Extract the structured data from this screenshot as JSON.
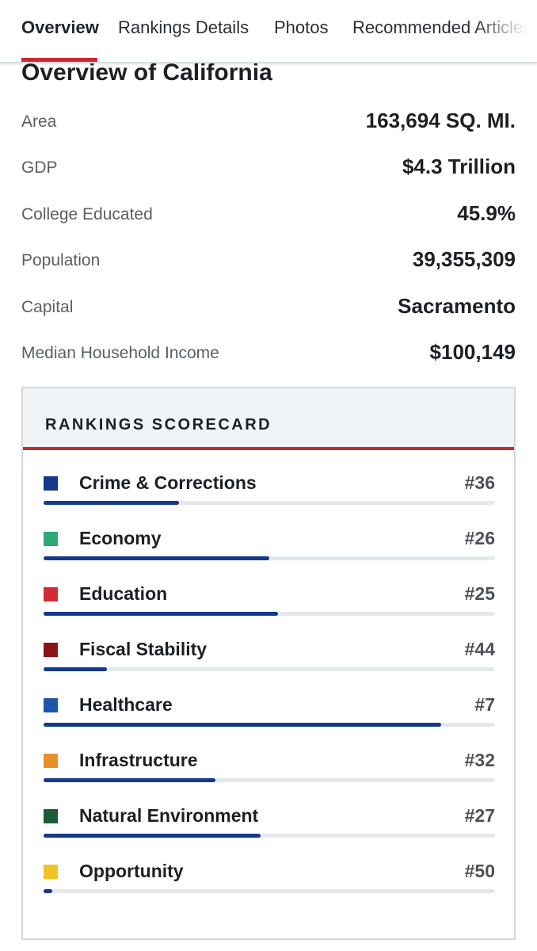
{
  "tabs": [
    {
      "label": "Overview",
      "active": true
    },
    {
      "label": "Rankings Details",
      "active": false
    },
    {
      "label": "Photos",
      "active": false
    },
    {
      "label": "Recommended Articles",
      "active": false
    }
  ],
  "overview": {
    "title": "Overview of California",
    "stats": [
      {
        "label": "Area",
        "value": "163,694 SQ. MI."
      },
      {
        "label": "GDP",
        "value": "$4.3 Trillion"
      },
      {
        "label": "College Educated",
        "value": "45.9%"
      },
      {
        "label": "Population",
        "value": "39,355,309"
      },
      {
        "label": "Capital",
        "value": "Sacramento"
      },
      {
        "label": "Median Household Income",
        "value": "$100,149"
      }
    ]
  },
  "scorecard": {
    "title": "RANKINGS SCORECARD",
    "total_ranked": 50,
    "bar_color": "#153a8b",
    "items": [
      {
        "name": "Crime & Corrections",
        "rank": "#36",
        "rank_value": 36,
        "color": "#153a8b"
      },
      {
        "name": "Economy",
        "rank": "#26",
        "rank_value": 26,
        "color": "#2fa877"
      },
      {
        "name": "Education",
        "rank": "#25",
        "rank_value": 25,
        "color": "#d42a36"
      },
      {
        "name": "Fiscal Stability",
        "rank": "#44",
        "rank_value": 44,
        "color": "#8b1418"
      },
      {
        "name": "Healthcare",
        "rank": "#7",
        "rank_value": 7,
        "color": "#1f56a8"
      },
      {
        "name": "Infrastructure",
        "rank": "#32",
        "rank_value": 32,
        "color": "#e8902a"
      },
      {
        "name": "Natural Environment",
        "rank": "#27",
        "rank_value": 27,
        "color": "#1d5b37"
      },
      {
        "name": "Opportunity",
        "rank": "#50",
        "rank_value": 50,
        "color": "#f2c327"
      }
    ]
  }
}
